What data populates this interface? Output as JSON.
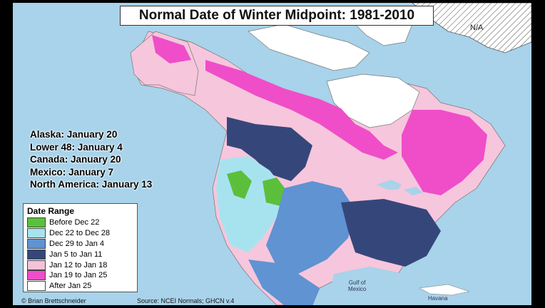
{
  "title": "Normal Date of Winter Midpoint: 1981-2010",
  "no_data_label": "N/A",
  "stats": [
    {
      "text": "Alaska: January 20"
    },
    {
      "text": "Lower 48: January 4"
    },
    {
      "text": "Canada: January 20"
    },
    {
      "text": "Mexico: January 7"
    },
    {
      "text": "North America: January 13"
    }
  ],
  "legend": {
    "title": "Date Range",
    "items": [
      {
        "label": "Before Dec 22",
        "color": "#5cbf3c"
      },
      {
        "label": "Dec 22 to Dec 28",
        "color": "#a7e3ef"
      },
      {
        "label": "Dec 29 to Jan 4",
        "color": "#5f93d2"
      },
      {
        "label": "Jan 5 to Jan 11",
        "color": "#35477a"
      },
      {
        "label": "Jan 12 to Jan 18",
        "color": "#f4c2d9"
      },
      {
        "label": "Jan 19 to Jan 25",
        "color": "#ef4ec8"
      },
      {
        "label": "After Jan 25",
        "color": "#ffffff"
      }
    ]
  },
  "credit": "© Brian Brettschneider",
  "source": "Source: NCEI Normals; GHCN v.4",
  "places": {
    "gulf": "Gulf of\nMexico",
    "havana": "Havana"
  }
}
